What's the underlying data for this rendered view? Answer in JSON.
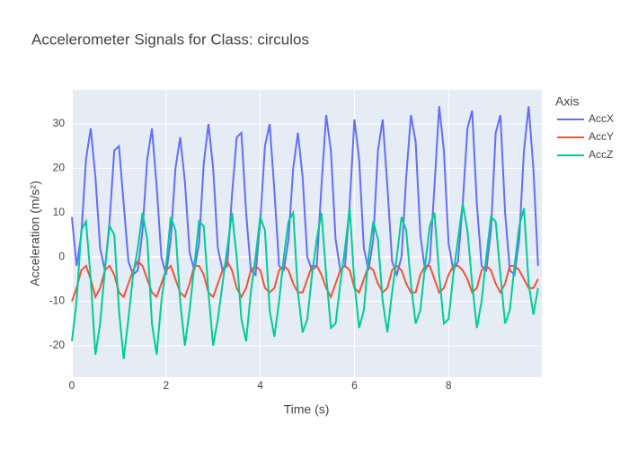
{
  "chart_data": {
    "type": "line",
    "title": "Accelerometer Signals for Class: circulos",
    "x_label": "Time (s)",
    "y_label": "Acceleration (m/s²)",
    "legend_title": "Axis",
    "legend_position": "right",
    "grid": true,
    "xlim": [
      0,
      9.98
    ],
    "ylim": [
      -27.1,
      37.7
    ],
    "xticks": [
      0,
      2,
      4,
      6,
      8
    ],
    "yticks": [
      -20,
      -10,
      0,
      10,
      20,
      30
    ],
    "x": [
      0,
      0.1,
      0.2,
      0.3,
      0.4,
      0.5,
      0.6,
      0.7,
      0.8,
      0.9,
      1,
      1.1,
      1.2,
      1.3,
      1.4,
      1.5,
      1.6,
      1.7,
      1.8,
      1.9,
      2,
      2.1,
      2.2,
      2.3,
      2.4,
      2.5,
      2.6,
      2.7,
      2.8,
      2.9,
      3,
      3.1,
      3.2,
      3.3,
      3.4,
      3.5,
      3.6,
      3.7,
      3.8,
      3.9,
      4,
      4.1,
      4.2,
      4.3,
      4.4,
      4.5,
      4.6,
      4.7,
      4.8,
      4.9,
      5,
      5.1,
      5.2,
      5.3,
      5.4,
      5.5,
      5.6,
      5.7,
      5.8,
      5.9,
      6,
      6.1,
      6.2,
      6.3,
      6.4,
      6.5,
      6.6,
      6.7,
      6.8,
      6.9,
      7,
      7.1,
      7.2,
      7.3,
      7.4,
      7.5,
      7.6,
      7.7,
      7.8,
      7.9,
      8,
      8.1,
      8.2,
      8.3,
      8.4,
      8.5,
      8.6,
      8.7,
      8.8,
      8.9,
      9,
      9.1,
      9.2,
      9.3,
      9.4,
      9.5,
      9.6,
      9.7,
      9.8,
      9.9
    ],
    "series": [
      {
        "name": "AccX",
        "color": "#636efa",
        "values": [
          9,
          -2,
          5,
          22,
          29,
          18,
          2,
          -3,
          8,
          24,
          25,
          12,
          -1,
          -4,
          -3,
          6,
          22,
          29,
          16,
          0,
          -4,
          4,
          20,
          27,
          17,
          1,
          -3,
          3,
          21,
          30,
          20,
          2,
          -3,
          -2,
          14,
          27,
          28,
          10,
          -3,
          -4,
          8,
          25,
          30,
          15,
          -2,
          -3,
          4,
          20,
          28,
          18,
          0,
          -3,
          -2,
          16,
          32,
          24,
          4,
          -3,
          -2,
          12,
          31,
          22,
          2,
          -3,
          4,
          24,
          31,
          16,
          -1,
          -4,
          0,
          18,
          32,
          26,
          5,
          -3,
          -1,
          16,
          34,
          24,
          3,
          -3,
          -1,
          12,
          29,
          33,
          12,
          -2,
          -3,
          6,
          28,
          32,
          10,
          -3,
          -4,
          4,
          24,
          34,
          20,
          -2
        ]
      },
      {
        "name": "AccY",
        "color": "#ef553b",
        "values": [
          -10,
          -7,
          -3,
          -2,
          -5,
          -9,
          -7,
          -3,
          -2,
          -4,
          -8,
          -9,
          -6,
          -3,
          -1,
          -2,
          -5,
          -8,
          -9,
          -6,
          -3,
          -2,
          -5,
          -8,
          -9,
          -6,
          -2,
          -2,
          -4,
          -8,
          -9,
          -6,
          -3,
          -1,
          -3,
          -7,
          -9,
          -7,
          -3,
          -2,
          -3,
          -7,
          -8,
          -7,
          -3,
          -2,
          -3,
          -6,
          -8,
          -8,
          -5,
          -2,
          -2,
          -4,
          -7,
          -9,
          -6,
          -3,
          -2,
          -3,
          -7,
          -8,
          -5,
          -2,
          -3,
          -6,
          -8,
          -7,
          -3,
          -2,
          -3,
          -6,
          -8,
          -8,
          -4,
          -2,
          -2,
          -5,
          -8,
          -7,
          -4,
          -2,
          -2,
          -3,
          -5,
          -8,
          -7,
          -3,
          -2,
          -3,
          -6,
          -8,
          -6,
          -2,
          -2,
          -3,
          -5,
          -7,
          -7,
          -5
        ]
      },
      {
        "name": "AccZ",
        "color": "#00cc96",
        "values": [
          -19,
          -10,
          6,
          8,
          -5,
          -22,
          -15,
          -3,
          7,
          5,
          -12,
          -23,
          -14,
          -4,
          2,
          10,
          4,
          -15,
          -22,
          -10,
          -2,
          9,
          6,
          -10,
          -20,
          -12,
          -2,
          8,
          7,
          -8,
          -20,
          -14,
          -6,
          2,
          10,
          0,
          -14,
          -19,
          -8,
          0,
          9,
          6,
          -12,
          -18,
          -10,
          0,
          8,
          10,
          -8,
          -17,
          -14,
          -4,
          4,
          10,
          -4,
          -16,
          -15,
          -6,
          2,
          11,
          -6,
          -16,
          -12,
          0,
          8,
          4,
          -10,
          -17,
          -8,
          0,
          9,
          6,
          -6,
          -15,
          -12,
          -2,
          7,
          10,
          -4,
          -15,
          -14,
          -4,
          4,
          12,
          6,
          -6,
          -16,
          -10,
          0,
          9,
          8,
          -4,
          -15,
          -12,
          -2,
          7,
          11,
          -6,
          -13,
          -7
        ]
      }
    ]
  }
}
